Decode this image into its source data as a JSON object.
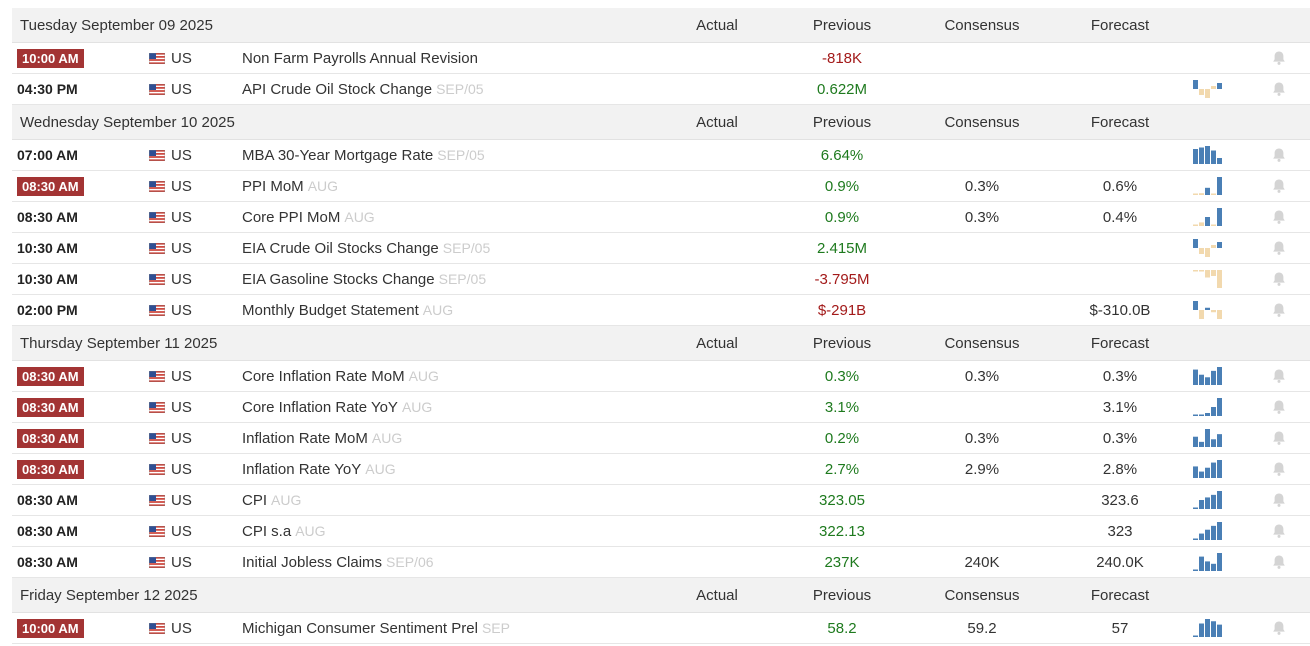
{
  "columns": {
    "actual": "Actual",
    "previous": "Previous",
    "consensus": "Consensus",
    "forecast": "Forecast"
  },
  "colors": {
    "badge": "#a33434",
    "positive": "#1e7a1e",
    "negative": "#a31a1a",
    "spark_blue": "#4a7fb5",
    "spark_tan": "#f2d9ae",
    "bell": "#d4d4d4"
  },
  "days": [
    {
      "date": "Tuesday September 09 2025",
      "events": [
        {
          "time": "10:00 AM",
          "highlight": true,
          "country": "US",
          "name": "Non Farm Payrolls Annual Revision",
          "ref": "",
          "actual": "",
          "previous": "-818K",
          "previous_tone": "neg",
          "consensus": "",
          "forecast": "",
          "spark": []
        },
        {
          "time": "04:30 PM",
          "highlight": false,
          "country": "US",
          "name": "API Crude Oil Stock Change",
          "ref": "SEP/05",
          "actual": "",
          "previous": "0.622M",
          "previous_tone": "pos",
          "consensus": "",
          "forecast": "",
          "spark": [
            {
              "v": 3,
              "c": "blue"
            },
            {
              "v": -2,
              "c": "tan"
            },
            {
              "v": -3,
              "c": "tan"
            },
            {
              "v": 1,
              "c": "tan"
            },
            {
              "v": 2,
              "c": "blue"
            }
          ]
        }
      ]
    },
    {
      "date": "Wednesday September 10 2025",
      "events": [
        {
          "time": "07:00 AM",
          "highlight": false,
          "country": "US",
          "name": "MBA 30-Year Mortgage Rate",
          "ref": "SEP/05",
          "actual": "",
          "previous": "6.64%",
          "previous_tone": "pos",
          "consensus": "",
          "forecast": "",
          "spark": [
            {
              "v": 10,
              "c": "blue"
            },
            {
              "v": 11,
              "c": "blue"
            },
            {
              "v": 12,
              "c": "blue"
            },
            {
              "v": 9,
              "c": "blue"
            },
            {
              "v": 4,
              "c": "blue"
            }
          ]
        },
        {
          "time": "08:30 AM",
          "highlight": true,
          "country": "US",
          "name": "PPI MoM",
          "ref": "AUG",
          "actual": "",
          "previous": "0.9%",
          "previous_tone": "pos",
          "consensus": "0.3%",
          "forecast": "0.6%",
          "spark": [
            {
              "v": 0,
              "c": "tan"
            },
            {
              "v": 1,
              "c": "tan"
            },
            {
              "v": 4,
              "c": "blue"
            },
            {
              "v": 0,
              "c": "tan"
            },
            {
              "v": 10,
              "c": "blue"
            }
          ]
        },
        {
          "time": "08:30 AM",
          "highlight": false,
          "country": "US",
          "name": "Core PPI MoM",
          "ref": "AUG",
          "actual": "",
          "previous": "0.9%",
          "previous_tone": "pos",
          "consensus": "0.3%",
          "forecast": "0.4%",
          "spark": [
            {
              "v": 0,
              "c": "tan"
            },
            {
              "v": 2,
              "c": "tan"
            },
            {
              "v": 5,
              "c": "blue"
            },
            {
              "v": 0,
              "c": "tan"
            },
            {
              "v": 10,
              "c": "blue"
            }
          ]
        },
        {
          "time": "10:30 AM",
          "highlight": false,
          "country": "US",
          "name": "EIA Crude Oil Stocks Change",
          "ref": "SEP/05",
          "actual": "",
          "previous": "2.415M",
          "previous_tone": "pos",
          "consensus": "",
          "forecast": "",
          "spark": [
            {
              "v": 3,
              "c": "blue"
            },
            {
              "v": -2,
              "c": "tan"
            },
            {
              "v": -3,
              "c": "tan"
            },
            {
              "v": 1,
              "c": "tan"
            },
            {
              "v": 2,
              "c": "blue"
            }
          ]
        },
        {
          "time": "10:30 AM",
          "highlight": false,
          "country": "US",
          "name": "EIA Gasoline Stocks Change",
          "ref": "SEP/05",
          "actual": "",
          "previous": "-3.795M",
          "previous_tone": "neg",
          "consensus": "",
          "forecast": "",
          "spark": [
            {
              "v": -1,
              "c": "tan"
            },
            {
              "v": -1,
              "c": "tan"
            },
            {
              "v": -5,
              "c": "tan"
            },
            {
              "v": -4,
              "c": "tan"
            },
            {
              "v": -12,
              "c": "tan"
            }
          ]
        },
        {
          "time": "02:00 PM",
          "highlight": false,
          "country": "US",
          "name": "Monthly Budget Statement",
          "ref": "AUG",
          "actual": "",
          "previous": "$-291B",
          "previous_tone": "neg",
          "consensus": "",
          "forecast": "$-310.0B",
          "spark": [
            {
              "v": 4,
              "c": "blue"
            },
            {
              "v": -4,
              "c": "tan"
            },
            {
              "v": 1,
              "c": "blue"
            },
            {
              "v": -1,
              "c": "tan"
            },
            {
              "v": -4,
              "c": "tan"
            }
          ]
        }
      ]
    },
    {
      "date": "Thursday September 11 2025",
      "events": [
        {
          "time": "08:30 AM",
          "highlight": true,
          "country": "US",
          "name": "Core Inflation Rate MoM",
          "ref": "AUG",
          "actual": "",
          "previous": "0.3%",
          "previous_tone": "pos",
          "consensus": "0.3%",
          "forecast": "0.3%",
          "spark": [
            {
              "v": 12,
              "c": "blue"
            },
            {
              "v": 8,
              "c": "blue"
            },
            {
              "v": 6,
              "c": "blue"
            },
            {
              "v": 11,
              "c": "blue"
            },
            {
              "v": 14,
              "c": "blue"
            }
          ]
        },
        {
          "time": "08:30 AM",
          "highlight": true,
          "country": "US",
          "name": "Core Inflation Rate YoY",
          "ref": "AUG",
          "actual": "",
          "previous": "3.1%",
          "previous_tone": "pos",
          "consensus": "",
          "forecast": "3.1%",
          "spark": [
            {
              "v": 1,
              "c": "blue"
            },
            {
              "v": 1,
              "c": "blue"
            },
            {
              "v": 2,
              "c": "blue"
            },
            {
              "v": 6,
              "c": "blue"
            },
            {
              "v": 12,
              "c": "blue"
            }
          ]
        },
        {
          "time": "08:30 AM",
          "highlight": true,
          "country": "US",
          "name": "Inflation Rate MoM",
          "ref": "AUG",
          "actual": "",
          "previous": "0.2%",
          "previous_tone": "pos",
          "consensus": "0.3%",
          "forecast": "0.3%",
          "spark": [
            {
              "v": 8,
              "c": "blue"
            },
            {
              "v": 4,
              "c": "blue"
            },
            {
              "v": 14,
              "c": "blue"
            },
            {
              "v": 6,
              "c": "blue"
            },
            {
              "v": 10,
              "c": "blue"
            }
          ]
        },
        {
          "time": "08:30 AM",
          "highlight": true,
          "country": "US",
          "name": "Inflation Rate YoY",
          "ref": "AUG",
          "actual": "",
          "previous": "2.7%",
          "previous_tone": "pos",
          "consensus": "2.9%",
          "forecast": "2.8%",
          "spark": [
            {
              "v": 9,
              "c": "blue"
            },
            {
              "v": 5,
              "c": "blue"
            },
            {
              "v": 8,
              "c": "blue"
            },
            {
              "v": 12,
              "c": "blue"
            },
            {
              "v": 14,
              "c": "blue"
            }
          ]
        },
        {
          "time": "08:30 AM",
          "highlight": false,
          "country": "US",
          "name": "CPI",
          "ref": "AUG",
          "actual": "",
          "previous": "323.05",
          "previous_tone": "pos",
          "consensus": "",
          "forecast": "323.6",
          "spark": [
            {
              "v": 1,
              "c": "blue"
            },
            {
              "v": 7,
              "c": "blue"
            },
            {
              "v": 9,
              "c": "blue"
            },
            {
              "v": 11,
              "c": "blue"
            },
            {
              "v": 14,
              "c": "blue"
            }
          ]
        },
        {
          "time": "08:30 AM",
          "highlight": false,
          "country": "US",
          "name": "CPI s.a",
          "ref": "AUG",
          "actual": "",
          "previous": "322.13",
          "previous_tone": "pos",
          "consensus": "",
          "forecast": "323",
          "spark": [
            {
              "v": 1,
              "c": "blue"
            },
            {
              "v": 5,
              "c": "blue"
            },
            {
              "v": 8,
              "c": "blue"
            },
            {
              "v": 11,
              "c": "blue"
            },
            {
              "v": 14,
              "c": "blue"
            }
          ]
        },
        {
          "time": "08:30 AM",
          "highlight": false,
          "country": "US",
          "name": "Initial Jobless Claims",
          "ref": "SEP/06",
          "actual": "",
          "previous": "237K",
          "previous_tone": "pos",
          "consensus": "240K",
          "forecast": "240.0K",
          "spark": [
            {
              "v": 1,
              "c": "blue"
            },
            {
              "v": 12,
              "c": "blue"
            },
            {
              "v": 8,
              "c": "blue"
            },
            {
              "v": 6,
              "c": "blue"
            },
            {
              "v": 15,
              "c": "blue"
            }
          ]
        }
      ]
    },
    {
      "date": "Friday September 12 2025",
      "events": [
        {
          "time": "10:00 AM",
          "highlight": true,
          "country": "US",
          "name": "Michigan Consumer Sentiment Prel",
          "ref": "SEP",
          "actual": "",
          "previous": "58.2",
          "previous_tone": "pos",
          "consensus": "59.2",
          "forecast": "57",
          "spark": [
            {
              "v": 1,
              "c": "blue"
            },
            {
              "v": 12,
              "c": "blue"
            },
            {
              "v": 16,
              "c": "blue"
            },
            {
              "v": 14,
              "c": "blue"
            },
            {
              "v": 11,
              "c": "blue"
            }
          ]
        }
      ]
    }
  ]
}
